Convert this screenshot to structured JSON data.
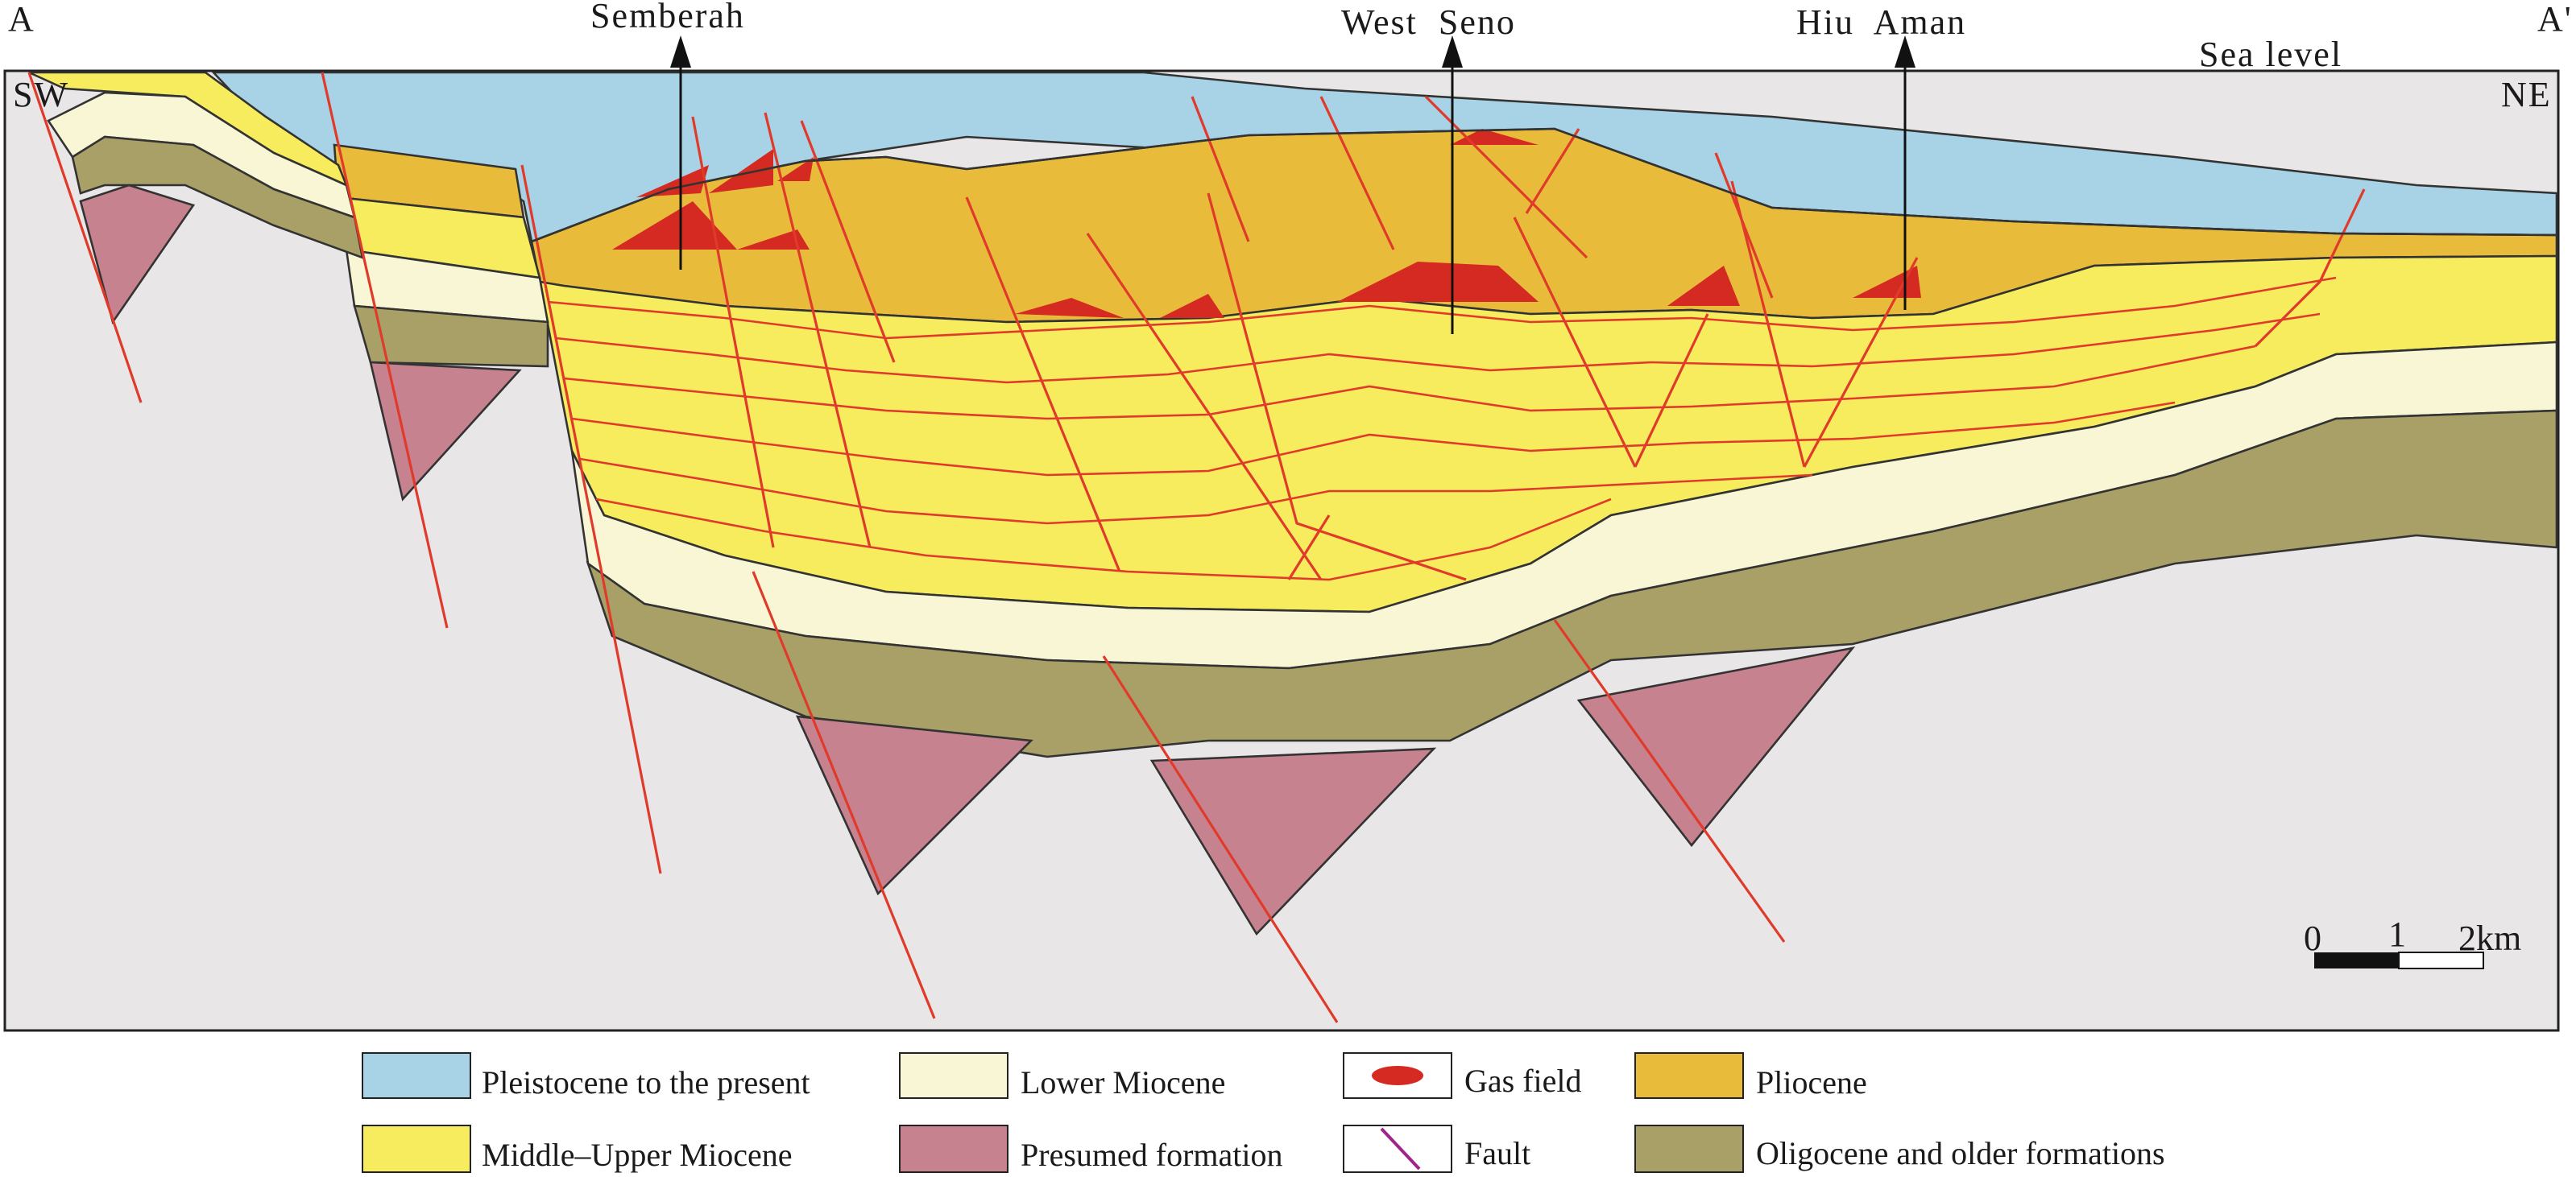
{
  "section": {
    "left_end": "A",
    "right_end": "A'",
    "left_dir": "SW",
    "right_dir": "NE",
    "sea_level": "Sea level",
    "wells": [
      {
        "name": "Semberah"
      },
      {
        "name": "West  Seno"
      },
      {
        "name": "Hiu  Aman"
      }
    ],
    "scale": {
      "ticks": [
        "0",
        "1",
        "2km"
      ]
    }
  },
  "legend": [
    {
      "label": "Pleistocene to the present",
      "color": "#a8d3e6",
      "kind": "box"
    },
    {
      "label": "Lower Miocene",
      "color": "#f8f6d4",
      "kind": "box"
    },
    {
      "label": "Gas field",
      "color": "#d42a22",
      "kind": "ellipse"
    },
    {
      "label": "Pliocene",
      "color": "#e8bc3a",
      "kind": "box"
    },
    {
      "label": "Middle–Upper Miocene",
      "color": "#f6ec5e",
      "kind": "box"
    },
    {
      "label": "Presumed formation",
      "color": "#c7828f",
      "kind": "box"
    },
    {
      "label": "Fault",
      "color": "#a0248c",
      "kind": "line"
    },
    {
      "label": "Oligocene and older formations",
      "color": "#a9a067",
      "kind": "box"
    }
  ]
}
